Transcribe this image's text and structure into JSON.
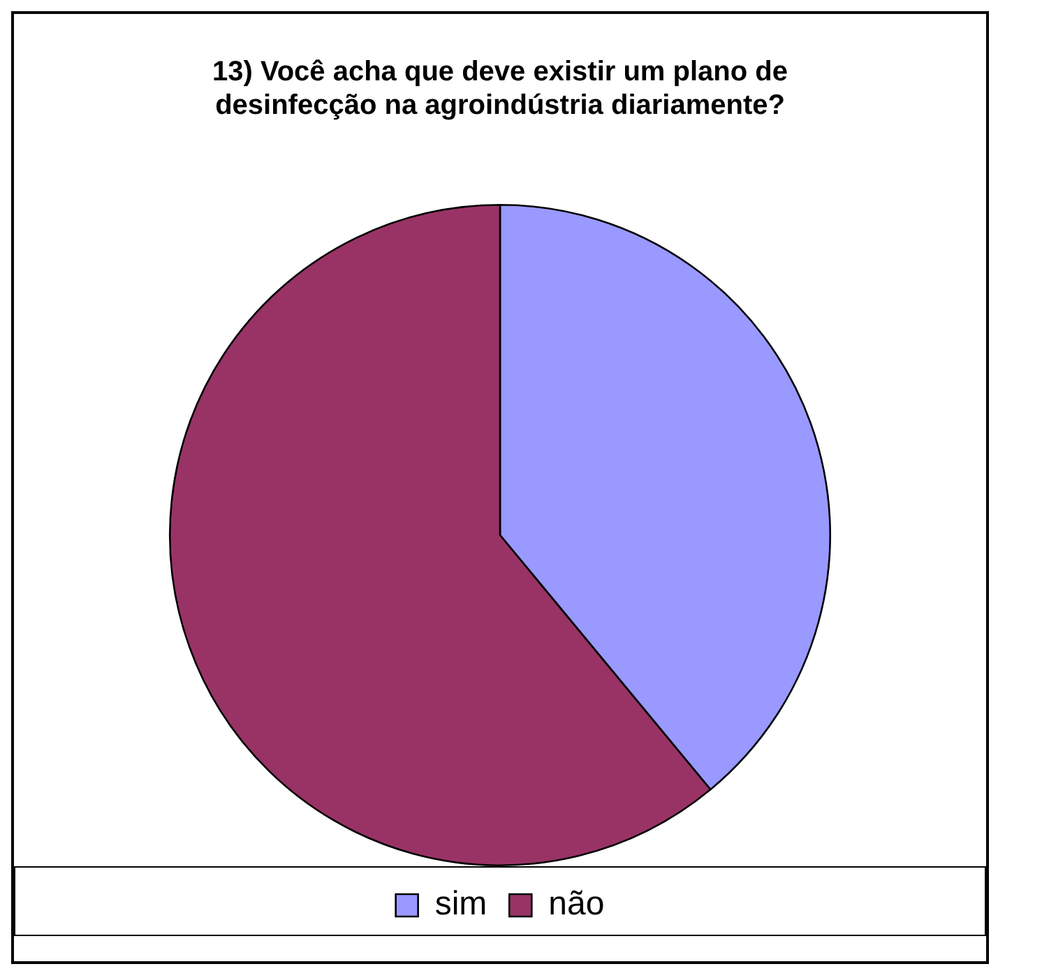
{
  "chart_data": {
    "type": "pie",
    "title": "13) Você acha que deve existir um plano de desinfecção na agroindústria diariamente?",
    "categories": [
      "sim",
      "não"
    ],
    "values": [
      39,
      61
    ],
    "colors": [
      "#9999ff",
      "#993366"
    ],
    "legend": "bottom"
  }
}
